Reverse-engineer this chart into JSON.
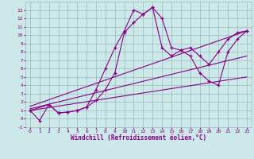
{
  "background_color": "#cce8e8",
  "line_color": "#880088",
  "grid_color": "#99bbbb",
  "xlabel": "Windchill (Refroidissement éolien,°C)",
  "xlabel_color": "#880088",
  "xlim": [
    -0.5,
    23.5
  ],
  "ylim": [
    -1,
    14
  ],
  "xtick_labels": [
    "0",
    "1",
    "2",
    "3",
    "4",
    "5",
    "6",
    "7",
    "8",
    "9",
    "10",
    "11",
    "12",
    "13",
    "14",
    "15",
    "16",
    "17",
    "18",
    "19",
    "20",
    "21",
    "22",
    "23"
  ],
  "xtick_vals": [
    0,
    1,
    2,
    3,
    4,
    5,
    6,
    7,
    8,
    9,
    10,
    11,
    12,
    13,
    14,
    15,
    16,
    17,
    18,
    19,
    20,
    21,
    22,
    23
  ],
  "ytick_vals": [
    -1,
    0,
    1,
    2,
    3,
    4,
    5,
    6,
    7,
    8,
    9,
    10,
    11,
    12,
    13
  ],
  "curve1_x": [
    0,
    1,
    2,
    3,
    4,
    5,
    6,
    7,
    8,
    9,
    10,
    11,
    12,
    13,
    14,
    15,
    16,
    17,
    18,
    19,
    20,
    21,
    22,
    23
  ],
  "curve1_y": [
    1.0,
    -0.2,
    1.7,
    0.7,
    0.8,
    1.0,
    1.4,
    3.5,
    6.0,
    8.5,
    10.5,
    13.0,
    12.5,
    13.3,
    12.0,
    8.5,
    8.2,
    8.5,
    7.5,
    6.5,
    8.0,
    9.5,
    10.3,
    10.5
  ],
  "curve2_x": [
    0,
    2,
    3,
    4,
    5,
    6,
    7,
    8,
    9,
    10,
    11,
    12,
    13,
    14,
    15,
    16,
    17,
    18,
    19,
    20,
    21,
    22,
    23
  ],
  "curve2_y": [
    1.0,
    1.7,
    0.7,
    0.8,
    1.0,
    1.4,
    2.2,
    3.5,
    5.5,
    10.3,
    11.5,
    12.5,
    13.3,
    8.5,
    7.5,
    8.2,
    7.5,
    5.5,
    4.5,
    4.0,
    8.0,
    9.5,
    10.5
  ],
  "line1_x": [
    0,
    23
  ],
  "line1_y": [
    1.5,
    10.5
  ],
  "line2_x": [
    0,
    23
  ],
  "line2_y": [
    1.2,
    7.5
  ],
  "line3_x": [
    0,
    23
  ],
  "line3_y": [
    1.0,
    5.0
  ]
}
